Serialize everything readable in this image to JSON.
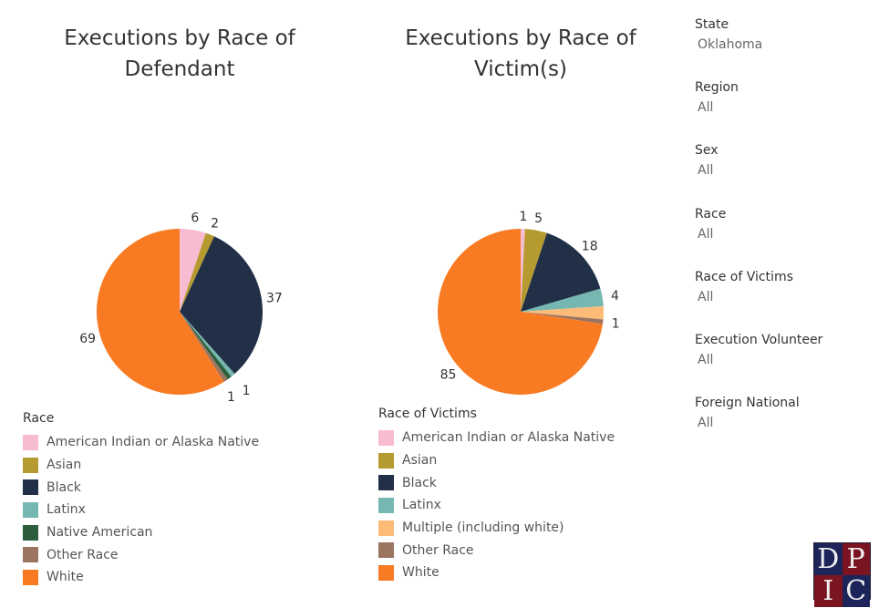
{
  "chart_data": [
    {
      "type": "pie",
      "title": "Executions by Race of Defendant",
      "legend_title": "Race",
      "legend_placement": "bottom-left",
      "slices": [
        {
          "name": "American Indian or Alaska Native",
          "value": 6,
          "color": "#f7bcd2",
          "label": "6"
        },
        {
          "name": "Asian",
          "value": 2,
          "color": "#b59a2f",
          "label": "2"
        },
        {
          "name": "Black",
          "value": 37,
          "color": "#223047",
          "label": "37"
        },
        {
          "name": "Latinx",
          "value": 1,
          "color": "#76b7b2",
          "label": ""
        },
        {
          "name": "Native American",
          "value": 1,
          "color": "#2d5e3b",
          "label": "1"
        },
        {
          "name": "Other Race",
          "value": 1,
          "color": "#9c7561",
          "label": "1"
        },
        {
          "name": "White",
          "value": 69,
          "color": "#f87b24",
          "label": "69"
        }
      ]
    },
    {
      "type": "pie",
      "title": "Executions by Race of Victim(s)",
      "legend_title": "Race of Victims",
      "legend_placement": "bottom-left",
      "slices": [
        {
          "name": "American Indian or Alaska Native",
          "value": 1,
          "color": "#f7bcd2",
          "label": "1"
        },
        {
          "name": "Asian",
          "value": 5,
          "color": "#b59a2f",
          "label": "5"
        },
        {
          "name": "Black",
          "value": 18,
          "color": "#223047",
          "label": "18"
        },
        {
          "name": "Latinx",
          "value": 4,
          "color": "#76b7b2",
          "label": "4"
        },
        {
          "name": "Multiple (including white)",
          "value": 3,
          "color": "#fdbb78",
          "label": ""
        },
        {
          "name": "Other Race",
          "value": 1,
          "color": "#9c7561",
          "label": "1"
        },
        {
          "name": "White",
          "value": 85,
          "color": "#f87b24",
          "label": "85"
        }
      ]
    }
  ],
  "filters": [
    {
      "label": "State",
      "value": "Oklahoma"
    },
    {
      "label": "Region",
      "value": "All"
    },
    {
      "label": "Sex",
      "value": "All"
    },
    {
      "label": "Race",
      "value": "All"
    },
    {
      "label": "Race of Victims",
      "value": "All"
    },
    {
      "label": "Execution Volunteer",
      "value": "All"
    },
    {
      "label": "Foreign National",
      "value": "All"
    }
  ],
  "logo": {
    "letters": [
      "D",
      "P",
      "I",
      "C"
    ],
    "colors": [
      "#1c2459",
      "#7a1420"
    ]
  }
}
